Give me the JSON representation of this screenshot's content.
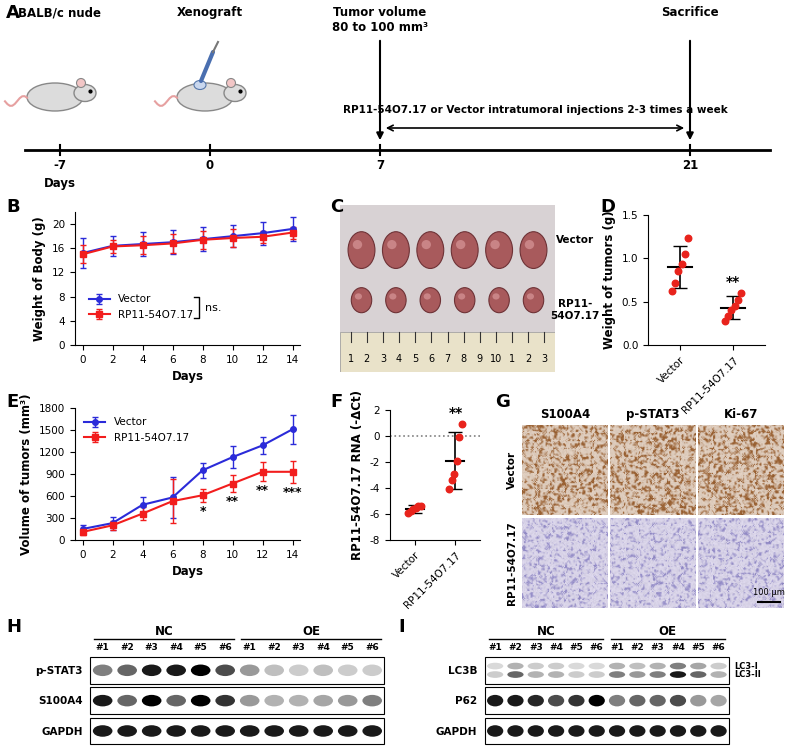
{
  "panel_labels": [
    "A",
    "B",
    "C",
    "D",
    "E",
    "F",
    "G",
    "H",
    "I"
  ],
  "timeline": {
    "axis_label": "Days",
    "stages": [
      {
        "label": "BALB/c nude",
        "day": -7
      },
      {
        "label": "Xenograft",
        "day": 0
      },
      {
        "label": "Tumor volume\n80 to 100 mm³",
        "day": 7
      },
      {
        "label": "Sacrifice",
        "day": 21
      }
    ],
    "treatment": {
      "text": "RP11-54O7.17 or Vector intratumoral injections 2-3 times a week",
      "from_day": 7,
      "to_day": 21
    }
  },
  "chart_data": [
    {
      "type": "line",
      "x": [
        0,
        2,
        4,
        6,
        8,
        10,
        12,
        14
      ],
      "xlim": [
        -0.5,
        14.5
      ],
      "xticks": [
        0,
        2,
        4,
        6,
        8,
        10,
        12,
        14
      ],
      "ylim": [
        0,
        22
      ],
      "yticks": [
        0,
        4,
        8,
        12,
        16,
        20
      ],
      "x_label": "Days",
      "y_label": "Weight of Body (g)",
      "legend": "lower left",
      "series": [
        {
          "name": "Vector",
          "color": "#2b2bd9",
          "marker": "circle",
          "values": [
            15.2,
            16.4,
            16.7,
            17.0,
            17.5,
            18.0,
            18.5,
            19.2
          ],
          "errors": [
            2.5,
            1.6,
            2.0,
            2.0,
            2.0,
            1.8,
            1.9,
            2.0
          ]
        },
        {
          "name": "RP11-54O7.17",
          "color": "#f21d1d",
          "marker": "square",
          "values": [
            15.0,
            16.3,
            16.5,
            16.8,
            17.4,
            17.7,
            17.9,
            18.6
          ],
          "errors": [
            1.5,
            1.0,
            1.5,
            1.5,
            1.5,
            1.5,
            1.0,
            1.0
          ]
        }
      ],
      "annotations": [
        {
          "text": "ns."
        }
      ]
    },
    {
      "type": "dot",
      "categories": [
        "Vector",
        "RP11-54O7.17"
      ],
      "color": "#e8231c",
      "ylim": [
        0,
        1.5
      ],
      "yticks": [
        {
          "value": 0,
          "label": "0.0"
        },
        {
          "value": 0.5,
          "label": "0.5"
        },
        {
          "value": 1,
          "label": "1.0"
        },
        {
          "value": 1.5,
          "label": "1.5"
        }
      ],
      "y_label": "Weight of tumors (g)",
      "values": [
        [
          0.62,
          0.72,
          0.85,
          0.93,
          1.05,
          1.23
        ],
        [
          0.28,
          0.33,
          0.4,
          0.45,
          0.52,
          0.6
        ]
      ],
      "mean": [
        0.9,
        0.43
      ],
      "sd": [
        0.24,
        0.13
      ],
      "annotations": [
        {
          "category": "RP11-54O7.17",
          "text": "**"
        }
      ]
    },
    {
      "type": "line",
      "x": [
        0,
        2,
        4,
        6,
        8,
        10,
        12,
        14
      ],
      "xlim": [
        -0.5,
        14.5
      ],
      "xticks": [
        0,
        2,
        4,
        6,
        8,
        10,
        12,
        14
      ],
      "ylim": [
        0,
        1800
      ],
      "yticks": [
        0,
        300,
        600,
        900,
        1200,
        1500,
        1800
      ],
      "x_label": "Days",
      "y_label": "Volume of tumors (mm³)",
      "legend": "upper left",
      "series": [
        {
          "name": "Vector",
          "color": "#2b2bd9",
          "marker": "circle",
          "values": [
            150,
            230,
            480,
            580,
            950,
            1130,
            1290,
            1510
          ],
          "errors": [
            50,
            90,
            100,
            280,
            100,
            150,
            120,
            200
          ]
        },
        {
          "name": "RP11-54O7.17",
          "color": "#f21d1d",
          "marker": "square",
          "values": [
            110,
            200,
            360,
            530,
            610,
            770,
            930,
            930
          ],
          "errors": [
            40,
            60,
            90,
            300,
            90,
            120,
            130,
            150
          ]
        }
      ],
      "annotations": [
        {
          "x": 8,
          "text": "*"
        },
        {
          "x": 10,
          "text": "**"
        },
        {
          "x": 12,
          "text": "**"
        },
        {
          "x": 14,
          "text": "***"
        }
      ]
    },
    {
      "type": "dot",
      "categories": [
        "Vector",
        "RP11-54O7.17"
      ],
      "color": "#e8231c",
      "ylim": [
        -8,
        2
      ],
      "yticks": [
        -8,
        -6,
        -4,
        -2,
        0,
        2
      ],
      "y_label": "RP11-54O7.17 RNA (-ΔCt)",
      "values": [
        [
          -5.9,
          -5.8,
          -5.6,
          -5.5,
          -5.4,
          -5.4
        ],
        [
          -4.1,
          -3.4,
          -2.9,
          -1.9,
          -0.1,
          0.9
        ]
      ],
      "mean": [
        -5.6,
        -1.9
      ],
      "sd": [
        0.3,
        2.2
      ],
      "hline": 0,
      "annotations": [
        {
          "category": "RP11-54O7.17",
          "text": "**"
        }
      ]
    }
  ],
  "tumor_photo": {
    "rows": [
      "Vector",
      "RP11-\n54O7.17"
    ],
    "tumors_per_row": 6,
    "ruler_labels": [
      "1",
      "2",
      "3",
      "4",
      "5",
      "6",
      "7",
      "8",
      "9",
      "10",
      "1",
      "2",
      "3"
    ]
  },
  "ihc": {
    "columns": [
      "S100A4",
      "p-STAT3",
      "Ki-67"
    ],
    "rows": [
      "Vector",
      "RP11-54O7.17"
    ],
    "scale_bar": "100 μm"
  },
  "western_blots": [
    {
      "groups": [
        {
          "name": "NC",
          "lanes": [
            "#1",
            "#2",
            "#3",
            "#4",
            "#5",
            "#6"
          ]
        },
        {
          "name": "OE",
          "lanes": [
            "#1",
            "#2",
            "#3",
            "#4",
            "#5",
            "#6"
          ]
        }
      ],
      "rows": [
        {
          "name": "p-STAT3",
          "bands": [
            {
              "intensities": [
                0.5,
                0.6,
                0.9,
                0.9,
                1.0,
                0.7,
                0.4,
                0.25,
                0.2,
                0.25,
                0.2,
                0.2
              ]
            }
          ]
        },
        {
          "name": "S100A4",
          "bands": [
            {
              "intensities": [
                0.9,
                0.6,
                1.0,
                0.6,
                1.0,
                0.8,
                0.4,
                0.3,
                0.3,
                0.35,
                0.4,
                0.5
              ]
            }
          ]
        },
        {
          "name": "GAPDH",
          "bands": [
            {
              "intensities": [
                0.9,
                0.9,
                0.9,
                0.9,
                0.9,
                0.9,
                0.9,
                0.9,
                0.9,
                0.9,
                0.9,
                0.9
              ]
            }
          ]
        }
      ]
    },
    {
      "groups": [
        {
          "name": "NC",
          "lanes": [
            "#1",
            "#2",
            "#3",
            "#4",
            "#5",
            "#6"
          ]
        },
        {
          "name": "OE",
          "lanes": [
            "#1",
            "#2",
            "#3",
            "#4",
            "#5",
            "#6"
          ]
        }
      ],
      "rows": [
        {
          "name": "LC3B",
          "bands": [
            {
              "label": "LC3-I",
              "intensities": [
                0.15,
                0.3,
                0.2,
                0.2,
                0.15,
                0.15,
                0.3,
                0.25,
                0.3,
                0.5,
                0.35,
                0.2
              ]
            },
            {
              "label": "LC3-II",
              "intensities": [
                0.2,
                0.6,
                0.3,
                0.3,
                0.2,
                0.2,
                0.5,
                0.4,
                0.5,
                0.9,
                0.6,
                0.3
              ]
            }
          ]
        },
        {
          "name": "P62",
          "bands": [
            {
              "intensities": [
                0.9,
                0.9,
                0.85,
                0.7,
                0.8,
                1.0,
                0.5,
                0.6,
                0.6,
                0.7,
                0.4,
                0.35
              ]
            }
          ]
        },
        {
          "name": "GAPDH",
          "bands": [
            {
              "intensities": [
                0.9,
                0.9,
                0.9,
                0.9,
                0.9,
                0.9,
                0.9,
                0.9,
                0.9,
                0.9,
                0.9,
                0.9
              ]
            }
          ]
        }
      ]
    }
  ]
}
